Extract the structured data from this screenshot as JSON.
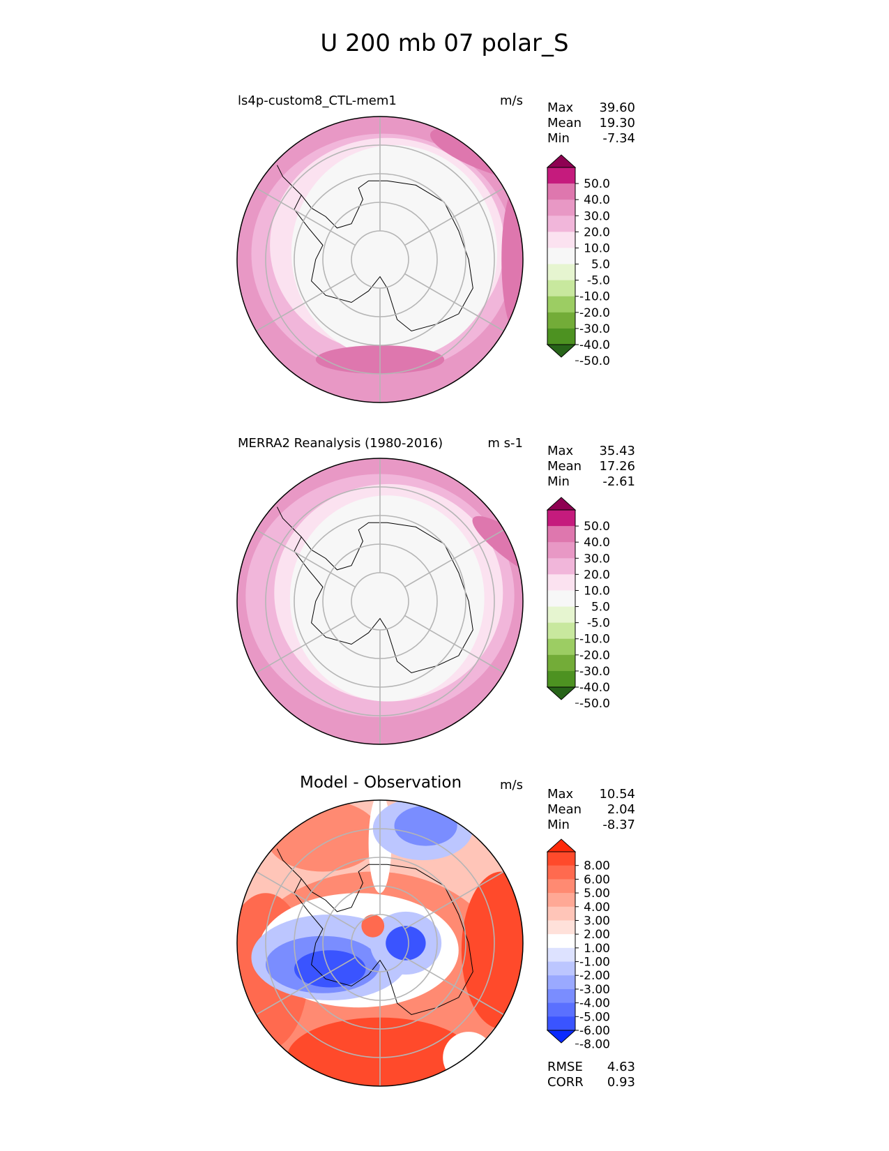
{
  "title": "U 200 mb 07 polar_S",
  "panels": [
    {
      "id": "model",
      "label": "ls4p-custom8_CTL-mem1",
      "units": "m/s",
      "stats": [
        [
          "Max",
          "39.60"
        ],
        [
          "Mean",
          "19.30"
        ],
        [
          "Min",
          "-7.34"
        ]
      ],
      "colorbar": {
        "ticks": [
          "50.0",
          "40.0",
          "30.0",
          "20.0",
          "10.0",
          "5.0",
          "-5.0",
          "-10.0",
          "-20.0",
          "-30.0",
          "-40.0",
          "-50.0"
        ],
        "colors": [
          "#8e0152",
          "#c51b7d",
          "#de77ae",
          "#e898c5",
          "#f1b6da",
          "#fbe2f0",
          "#f7f7f7",
          "#e6f5d0",
          "#c8e89e",
          "#9ccd63",
          "#73ac38",
          "#4d9221",
          "#276419"
        ],
        "top_color": "#8e0152",
        "bottom_color": "#276419"
      }
    },
    {
      "id": "obs",
      "label": "MERRA2 Reanalysis (1980-2016)",
      "units": "m s-1",
      "stats": [
        [
          "Max",
          "35.43"
        ],
        [
          "Mean",
          "17.26"
        ],
        [
          "Min",
          "-2.61"
        ]
      ],
      "colorbar": {
        "ticks": [
          "50.0",
          "40.0",
          "30.0",
          "20.0",
          "10.0",
          "5.0",
          "-5.0",
          "-10.0",
          "-20.0",
          "-30.0",
          "-40.0",
          "-50.0"
        ],
        "colors": [
          "#8e0152",
          "#c51b7d",
          "#de77ae",
          "#e898c5",
          "#f1b6da",
          "#fbe2f0",
          "#f7f7f7",
          "#e6f5d0",
          "#c8e89e",
          "#9ccd63",
          "#73ac38",
          "#4d9221",
          "#276419"
        ],
        "top_color": "#8e0152",
        "bottom_color": "#276419"
      }
    },
    {
      "id": "diff",
      "label": "Model - Observation",
      "units": "m/s",
      "stats": [
        [
          "Max",
          "10.54"
        ],
        [
          "Mean",
          "2.04"
        ],
        [
          "Min",
          "-8.37"
        ]
      ],
      "extra_stats": [
        [
          "RMSE",
          "4.63"
        ],
        [
          "CORR",
          "0.93"
        ]
      ],
      "colorbar": {
        "ticks": [
          "8.00",
          "6.00",
          "5.00",
          "4.00",
          "3.00",
          "2.00",
          "1.00",
          "-1.00",
          "-2.00",
          "-3.00",
          "-4.00",
          "-5.00",
          "-6.00",
          "-8.00"
        ],
        "colors": [
          "#ff2a0a",
          "#ff4a2b",
          "#ff6a4f",
          "#ff8a72",
          "#ffa895",
          "#ffc5b8",
          "#ffe1da",
          "#ffffff",
          "#dde2ff",
          "#bcc6ff",
          "#9aa9ff",
          "#7a8dff",
          "#5a70ff",
          "#3a54ff",
          "#1a38ff"
        ],
        "top_color": "#ff2a0a",
        "bottom_color": "#0a2aff"
      }
    }
  ]
}
